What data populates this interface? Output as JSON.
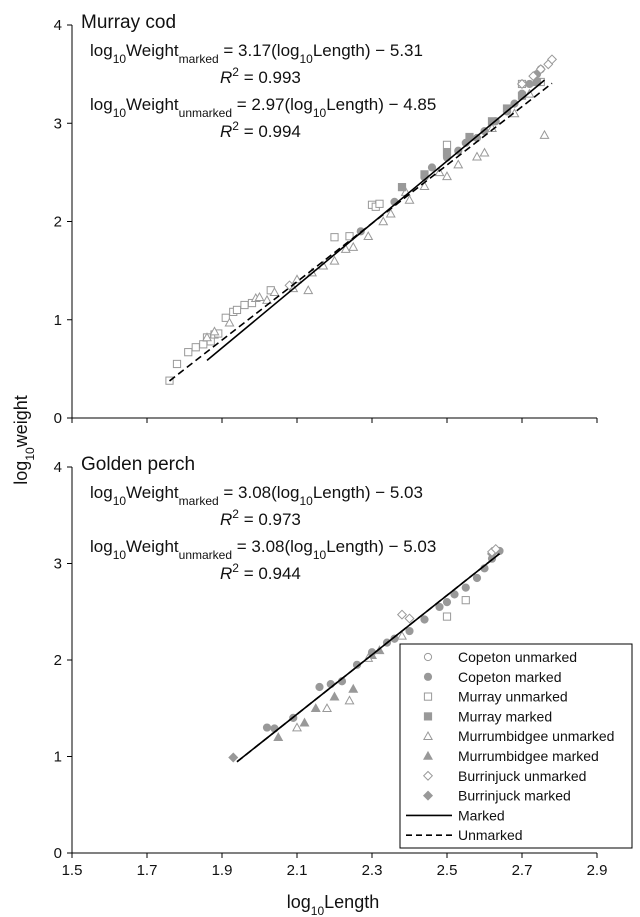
{
  "figure": {
    "ylabel_main": "log",
    "ylabel_sub": "10",
    "ylabel_tail": "weight",
    "xlabel_main": "log",
    "xlabel_sub": "10",
    "xlabel_tail": "Length"
  },
  "chart_data": [
    {
      "type": "scatter",
      "title": "Murray cod",
      "xlim": [
        1.5,
        2.9
      ],
      "ylim": [
        0,
        4
      ],
      "x_ticks": [
        "1.5",
        "1.7",
        "1.9",
        "2.1",
        "2.3",
        "2.5",
        "2.7",
        "2.9"
      ],
      "y_ticks": [
        "0",
        "1",
        "2",
        "3",
        "4"
      ],
      "equations": [
        {
          "prefix": "log",
          "sub10": "10",
          "word": "Weight",
          "subscript": "marked",
          "rhs_a": " = 3.17(log",
          "rhs_sub": "10",
          "rhs_b": "Length) − 5.31",
          "r2_label": "R",
          "r2_sup": "2",
          "r2_value": " = 0.993"
        },
        {
          "prefix": "log",
          "sub10": "10",
          "word": "Weight",
          "subscript": "unmarked",
          "rhs_a": " = 2.97(log",
          "rhs_sub": "10",
          "rhs_b": "Length) − 4.85",
          "r2_label": "R",
          "r2_sup": "2",
          "r2_value": " = 0.994"
        }
      ],
      "fits": [
        {
          "name": "Marked",
          "style": "solid",
          "slope": 3.17,
          "intercept": -5.31,
          "x_range": [
            1.86,
            2.76
          ]
        },
        {
          "name": "Unmarked",
          "style": "dashed",
          "slope": 2.97,
          "intercept": -4.85,
          "x_range": [
            1.76,
            2.78
          ]
        }
      ],
      "series": [
        {
          "name": "Murray unmarked",
          "marker": "square-open",
          "points": [
            [
              1.76,
              0.38
            ],
            [
              1.78,
              0.55
            ],
            [
              1.81,
              0.67
            ],
            [
              1.83,
              0.72
            ],
            [
              1.85,
              0.75
            ],
            [
              1.86,
              0.82
            ],
            [
              1.87,
              0.78
            ],
            [
              1.88,
              0.85
            ],
            [
              1.89,
              0.86
            ],
            [
              1.91,
              1.02
            ],
            [
              1.93,
              1.08
            ],
            [
              1.94,
              1.1
            ],
            [
              1.96,
              1.15
            ],
            [
              1.98,
              1.17
            ],
            [
              2.03,
              1.3
            ],
            [
              2.2,
              1.84
            ],
            [
              2.24,
              1.85
            ],
            [
              2.3,
              2.17
            ],
            [
              2.31,
              2.15
            ],
            [
              2.32,
              2.18
            ],
            [
              2.5,
              2.78
            ],
            [
              2.7,
              3.4
            ],
            [
              2.75,
              3.42
            ]
          ]
        },
        {
          "name": "Murrumbidgee unmarked",
          "marker": "triangle-open",
          "points": [
            [
              1.86,
              0.82
            ],
            [
              1.88,
              0.88
            ],
            [
              1.92,
              0.97
            ],
            [
              1.99,
              1.22
            ],
            [
              2.0,
              1.23
            ],
            [
              2.02,
              1.2
            ],
            [
              2.04,
              1.28
            ],
            [
              2.09,
              1.32
            ],
            [
              2.1,
              1.41
            ],
            [
              2.13,
              1.3
            ],
            [
              2.14,
              1.48
            ],
            [
              2.17,
              1.55
            ],
            [
              2.2,
              1.6
            ],
            [
              2.23,
              1.72
            ],
            [
              2.25,
              1.74
            ],
            [
              2.29,
              1.85
            ],
            [
              2.33,
              2.0
            ],
            [
              2.35,
              2.08
            ],
            [
              2.39,
              2.3
            ],
            [
              2.4,
              2.22
            ],
            [
              2.44,
              2.36
            ],
            [
              2.48,
              2.5
            ],
            [
              2.5,
              2.46
            ],
            [
              2.53,
              2.58
            ],
            [
              2.58,
              2.66
            ],
            [
              2.6,
              2.7
            ],
            [
              2.62,
              2.95
            ],
            [
              2.68,
              3.1
            ],
            [
              2.72,
              3.3
            ],
            [
              2.76,
              2.88
            ]
          ]
        },
        {
          "name": "Murray marked",
          "marker": "square-filled",
          "points": [
            [
              2.38,
              2.35
            ],
            [
              2.44,
              2.48
            ],
            [
              2.5,
              2.7
            ],
            [
              2.56,
              2.86
            ],
            [
              2.62,
              3.02
            ],
            [
              2.66,
              3.15
            ],
            [
              2.7,
              3.28
            ],
            [
              2.74,
              3.42
            ]
          ]
        },
        {
          "name": "Copeton marked",
          "marker": "circle-filled",
          "points": [
            [
              2.27,
              1.9
            ],
            [
              2.36,
              2.2
            ],
            [
              2.44,
              2.45
            ],
            [
              2.46,
              2.55
            ],
            [
              2.5,
              2.65
            ],
            [
              2.53,
              2.72
            ],
            [
              2.55,
              2.8
            ],
            [
              2.58,
              2.85
            ],
            [
              2.6,
              2.92
            ],
            [
              2.63,
              3.02
            ],
            [
              2.66,
              3.12
            ],
            [
              2.68,
              3.2
            ],
            [
              2.7,
              3.3
            ],
            [
              2.72,
              3.4
            ],
            [
              2.74,
              3.5
            ],
            [
              2.75,
              3.55
            ]
          ]
        },
        {
          "name": "Burrinjuck unmarked",
          "marker": "diamond-open",
          "points": [
            [
              2.08,
              1.35
            ],
            [
              2.7,
              3.4
            ],
            [
              2.73,
              3.48
            ],
            [
              2.75,
              3.55
            ],
            [
              2.77,
              3.6
            ],
            [
              2.78,
              3.65
            ]
          ]
        }
      ]
    },
    {
      "type": "scatter",
      "title": "Golden perch",
      "xlim": [
        1.5,
        2.9
      ],
      "ylim": [
        0,
        4
      ],
      "x_ticks": [
        "1.5",
        "1.7",
        "1.9",
        "2.1",
        "2.3",
        "2.5",
        "2.7",
        "2.9"
      ],
      "y_ticks": [
        "0",
        "1",
        "2",
        "3",
        "4"
      ],
      "equations": [
        {
          "prefix": "log",
          "sub10": "10",
          "word": "Weight",
          "subscript": "marked",
          "rhs_a": " = 3.08(log",
          "rhs_sub": "10",
          "rhs_b": "Length) − 5.03",
          "r2_label": "R",
          "r2_sup": "2",
          "r2_value": " = 0.973"
        },
        {
          "prefix": "log",
          "sub10": "10",
          "word": "Weight",
          "subscript": "unmarked",
          "rhs_a": " = 3.08(log",
          "rhs_sub": "10",
          "rhs_b": "Length) − 5.03",
          "r2_label": "R",
          "r2_sup": "2",
          "r2_value": " = 0.944"
        }
      ],
      "fits": [
        {
          "name": "Marked",
          "style": "solid",
          "slope": 3.08,
          "intercept": -5.03,
          "x_range": [
            1.94,
            2.64
          ]
        },
        {
          "name": "Unmarked",
          "style": "dashed",
          "slope": 3.08,
          "intercept": -5.03,
          "x_range": [
            1.94,
            2.64
          ]
        }
      ],
      "series": [
        {
          "name": "Burrinjuck marked",
          "marker": "diamond-filled",
          "points": [
            [
              1.93,
              0.99
            ],
            [
              2.62,
              3.1
            ]
          ]
        },
        {
          "name": "Copeton marked",
          "marker": "circle-filled",
          "points": [
            [
              2.02,
              1.3
            ],
            [
              2.04,
              1.29
            ],
            [
              2.09,
              1.4
            ],
            [
              2.16,
              1.72
            ],
            [
              2.19,
              1.75
            ],
            [
              2.22,
              1.78
            ],
            [
              2.26,
              1.95
            ],
            [
              2.3,
              2.08
            ],
            [
              2.34,
              2.18
            ],
            [
              2.36,
              2.22
            ],
            [
              2.4,
              2.3
            ],
            [
              2.44,
              2.42
            ],
            [
              2.48,
              2.55
            ],
            [
              2.5,
              2.6
            ],
            [
              2.52,
              2.68
            ],
            [
              2.55,
              2.75
            ],
            [
              2.58,
              2.85
            ],
            [
              2.6,
              2.95
            ],
            [
              2.62,
              3.05
            ],
            [
              2.64,
              3.13
            ]
          ]
        },
        {
          "name": "Murrumbidgee marked",
          "marker": "triangle-filled",
          "points": [
            [
              2.05,
              1.2
            ],
            [
              2.12,
              1.35
            ],
            [
              2.15,
              1.5
            ],
            [
              2.2,
              1.62
            ],
            [
              2.25,
              1.7
            ],
            [
              2.3,
              2.05
            ],
            [
              2.32,
              2.1
            ]
          ]
        },
        {
          "name": "Murrumbidgee unmarked",
          "marker": "triangle-open",
          "points": [
            [
              2.1,
              1.3
            ],
            [
              2.18,
              1.5
            ],
            [
              2.24,
              1.58
            ],
            [
              2.29,
              2.02
            ],
            [
              2.38,
              2.25
            ]
          ]
        },
        {
          "name": "Murray unmarked",
          "marker": "square-open",
          "points": [
            [
              2.5,
              2.45
            ],
            [
              2.55,
              2.62
            ]
          ]
        },
        {
          "name": "Burrinjuck unmarked",
          "marker": "diamond-open",
          "points": [
            [
              2.38,
              2.47
            ],
            [
              2.4,
              2.43
            ],
            [
              2.62,
              3.12
            ],
            [
              2.63,
              3.15
            ]
          ]
        }
      ],
      "legend": {
        "position": "bottom-right",
        "items": [
          {
            "label": "Copeton unmarked",
            "marker": "circle-open"
          },
          {
            "label": "Copeton marked",
            "marker": "circle-filled"
          },
          {
            "label": "Murray unmarked",
            "marker": "square-open"
          },
          {
            "label": "Murray marked",
            "marker": "square-filled"
          },
          {
            "label": "Murrumbidgee unmarked",
            "marker": "triangle-open"
          },
          {
            "label": "Murrumbidgee marked",
            "marker": "triangle-filled"
          },
          {
            "label": "Burrinjuck unmarked",
            "marker": "diamond-open"
          },
          {
            "label": "Burrinjuck marked",
            "marker": "diamond-filled"
          },
          {
            "label": "Marked",
            "marker": "line-solid"
          },
          {
            "label": "Unmarked",
            "marker": "line-dashed"
          }
        ]
      }
    }
  ],
  "colors": {
    "marker": "#999999",
    "line": "#000000",
    "text": "#111111"
  }
}
